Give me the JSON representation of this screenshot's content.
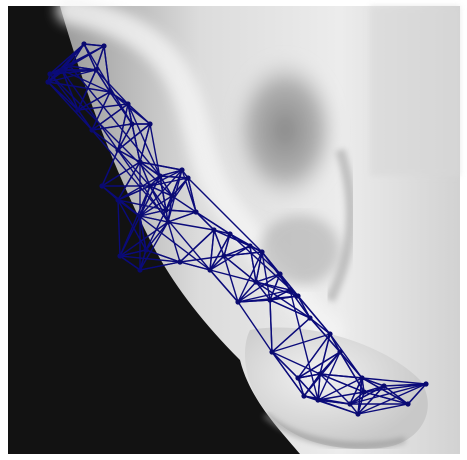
{
  "image": {
    "subject": "ear-photo-with-landmark-graph",
    "palette": {
      "background_dark": "#121212",
      "skin_light": "#e6e6e6",
      "skin_mid": "#b8b8b8",
      "skin_shadow": "#7c7c7c",
      "frame_white": "#ffffff",
      "graph_stroke": "#0b0b7a",
      "graph_node": "#0a0a70"
    }
  }
}
